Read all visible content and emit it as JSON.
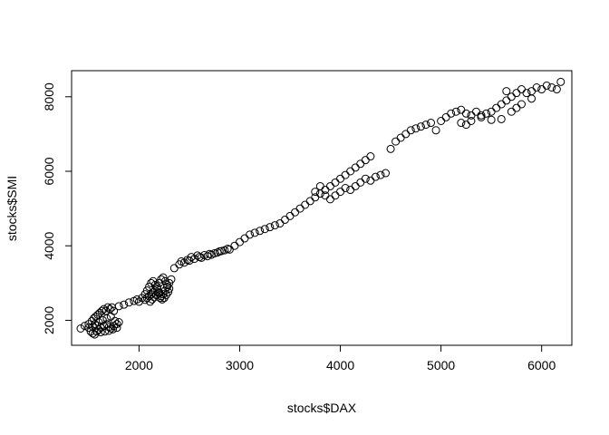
{
  "chart_data": {
    "type": "scatter",
    "title": "",
    "xlabel": "stocks$DAX",
    "ylabel": "stocks$SMI",
    "xlim": [
      1330,
      6300
    ],
    "ylim": [
      1330,
      8700
    ],
    "x_ticks": [
      2000,
      3000,
      4000,
      5000,
      6000
    ],
    "y_ticks": [
      2000,
      4000,
      6000,
      8000
    ],
    "x_tick_labels": [
      "2000",
      "3000",
      "4000",
      "5000",
      "6000"
    ],
    "y_tick_labels": [
      "2000",
      "4000",
      "6000",
      "8000"
    ],
    "grid": false,
    "legend": "none",
    "marker": "open-circle",
    "color": "#000000",
    "points": [
      [
        1420,
        1780
      ],
      [
        1460,
        1850
      ],
      [
        1500,
        1900
      ],
      [
        1520,
        1700
      ],
      [
        1540,
        1650
      ],
      [
        1560,
        1620
      ],
      [
        1580,
        1700
      ],
      [
        1600,
        1750
      ],
      [
        1620,
        1800
      ],
      [
        1650,
        1850
      ],
      [
        1680,
        1900
      ],
      [
        1700,
        1820
      ],
      [
        1720,
        1780
      ],
      [
        1750,
        1850
      ],
      [
        1780,
        1900
      ],
      [
        1800,
        1950
      ],
      [
        1530,
        1980
      ],
      [
        1550,
        2050
      ],
      [
        1570,
        2100
      ],
      [
        1590,
        2150
      ],
      [
        1610,
        2200
      ],
      [
        1630,
        2250
      ],
      [
        1650,
        2300
      ],
      [
        1670,
        2250
      ],
      [
        1690,
        2350
      ],
      [
        1710,
        2300
      ],
      [
        1730,
        2350
      ],
      [
        1750,
        2250
      ],
      [
        1560,
        1900
      ],
      [
        1600,
        1950
      ],
      [
        1640,
        2000
      ],
      [
        1680,
        2050
      ],
      [
        1720,
        2100
      ],
      [
        1760,
        1980
      ],
      [
        1500,
        1800
      ],
      [
        1540,
        1820
      ],
      [
        1580,
        1860
      ],
      [
        1620,
        1680
      ],
      [
        1660,
        1700
      ],
      [
        1700,
        1720
      ],
      [
        1740,
        1760
      ],
      [
        1780,
        1800
      ],
      [
        1800,
        2380
      ],
      [
        1850,
        2420
      ],
      [
        1900,
        2480
      ],
      [
        1950,
        2520
      ],
      [
        1980,
        2560
      ],
      [
        2000,
        2500
      ],
      [
        2030,
        2600
      ],
      [
        2060,
        2700
      ],
      [
        2080,
        2800
      ],
      [
        2100,
        2900
      ],
      [
        2120,
        3000
      ],
      [
        2140,
        3050
      ],
      [
        2160,
        2950
      ],
      [
        2180,
        2850
      ],
      [
        2200,
        2750
      ],
      [
        2220,
        2650
      ],
      [
        2240,
        2700
      ],
      [
        2260,
        2800
      ],
      [
        2280,
        2900
      ],
      [
        2300,
        3000
      ],
      [
        2320,
        3100
      ],
      [
        2060,
        2550
      ],
      [
        2080,
        2600
      ],
      [
        2100,
        2650
      ],
      [
        2120,
        2700
      ],
      [
        2140,
        2750
      ],
      [
        2160,
        2800
      ],
      [
        2180,
        2900
      ],
      [
        2200,
        3000
      ],
      [
        2220,
        3100
      ],
      [
        2240,
        3150
      ],
      [
        2260,
        3050
      ],
      [
        2280,
        2950
      ],
      [
        2300,
        2850
      ],
      [
        2110,
        2500
      ],
      [
        2130,
        2560
      ],
      [
        2150,
        2620
      ],
      [
        2170,
        2680
      ],
      [
        2190,
        2740
      ],
      [
        2210,
        2600
      ],
      [
        2230,
        2560
      ],
      [
        2250,
        2600
      ],
      [
        2270,
        2680
      ],
      [
        2290,
        2760
      ],
      [
        2350,
        3400
      ],
      [
        2400,
        3500
      ],
      [
        2450,
        3550
      ],
      [
        2500,
        3600
      ],
      [
        2550,
        3650
      ],
      [
        2600,
        3700
      ],
      [
        2650,
        3750
      ],
      [
        2700,
        3780
      ],
      [
        2750,
        3800
      ],
      [
        2800,
        3850
      ],
      [
        2850,
        3880
      ],
      [
        2900,
        3900
      ],
      [
        2420,
        3580
      ],
      [
        2480,
        3620
      ],
      [
        2520,
        3700
      ],
      [
        2580,
        3740
      ],
      [
        2620,
        3680
      ],
      [
        2680,
        3720
      ],
      [
        2720,
        3760
      ],
      [
        2780,
        3820
      ],
      [
        2820,
        3860
      ],
      [
        2880,
        3920
      ],
      [
        2950,
        4000
      ],
      [
        3000,
        4100
      ],
      [
        3050,
        4200
      ],
      [
        3100,
        4300
      ],
      [
        3150,
        4350
      ],
      [
        3200,
        4400
      ],
      [
        3250,
        4450
      ],
      [
        3300,
        4500
      ],
      [
        3350,
        4550
      ],
      [
        3400,
        4600
      ],
      [
        3450,
        4700
      ],
      [
        3500,
        4800
      ],
      [
        3550,
        4900
      ],
      [
        3600,
        5000
      ],
      [
        3650,
        5100
      ],
      [
        3700,
        5200
      ],
      [
        3750,
        5300
      ],
      [
        3800,
        5400
      ],
      [
        3850,
        5500
      ],
      [
        3900,
        5600
      ],
      [
        3950,
        5700
      ],
      [
        4000,
        5800
      ],
      [
        4050,
        5900
      ],
      [
        4100,
        6000
      ],
      [
        4150,
        6100
      ],
      [
        4200,
        6200
      ],
      [
        4250,
        6300
      ],
      [
        4300,
        6400
      ],
      [
        3750,
        5450
      ],
      [
        3800,
        5600
      ],
      [
        3850,
        5350
      ],
      [
        3900,
        5250
      ],
      [
        3950,
        5350
      ],
      [
        4000,
        5450
      ],
      [
        4050,
        5550
      ],
      [
        4100,
        5500
      ],
      [
        4150,
        5600
      ],
      [
        4200,
        5700
      ],
      [
        4250,
        5800
      ],
      [
        4300,
        5750
      ],
      [
        4350,
        5850
      ],
      [
        4400,
        5900
      ],
      [
        4450,
        5950
      ],
      [
        4500,
        6600
      ],
      [
        4550,
        6800
      ],
      [
        4600,
        6900
      ],
      [
        4650,
        7000
      ],
      [
        4700,
        7100
      ],
      [
        4750,
        7150
      ],
      [
        4800,
        7200
      ],
      [
        4850,
        7250
      ],
      [
        4900,
        7300
      ],
      [
        4950,
        7100
      ],
      [
        5000,
        7350
      ],
      [
        5050,
        7450
      ],
      [
        5100,
        7550
      ],
      [
        5150,
        7600
      ],
      [
        5200,
        7650
      ],
      [
        5250,
        7550
      ],
      [
        5300,
        7500
      ],
      [
        5350,
        7600
      ],
      [
        5400,
        7500
      ],
      [
        5450,
        7550
      ],
      [
        5500,
        7600
      ],
      [
        5550,
        7700
      ],
      [
        5600,
        7800
      ],
      [
        5650,
        7900
      ],
      [
        5700,
        8000
      ],
      [
        5750,
        8100
      ],
      [
        5800,
        8200
      ],
      [
        5850,
        8100
      ],
      [
        5900,
        8150
      ],
      [
        5950,
        8250
      ],
      [
        6000,
        8200
      ],
      [
        6050,
        8300
      ],
      [
        6100,
        8250
      ],
      [
        6150,
        8200
      ],
      [
        6190,
        8400
      ],
      [
        5200,
        7300
      ],
      [
        5250,
        7250
      ],
      [
        5300,
        7350
      ],
      [
        5400,
        7450
      ],
      [
        5500,
        7380
      ],
      [
        5600,
        7400
      ],
      [
        5700,
        7600
      ],
      [
        5800,
        7800
      ],
      [
        5900,
        7950
      ],
      [
        5650,
        8150
      ],
      [
        5750,
        7700
      ]
    ]
  }
}
